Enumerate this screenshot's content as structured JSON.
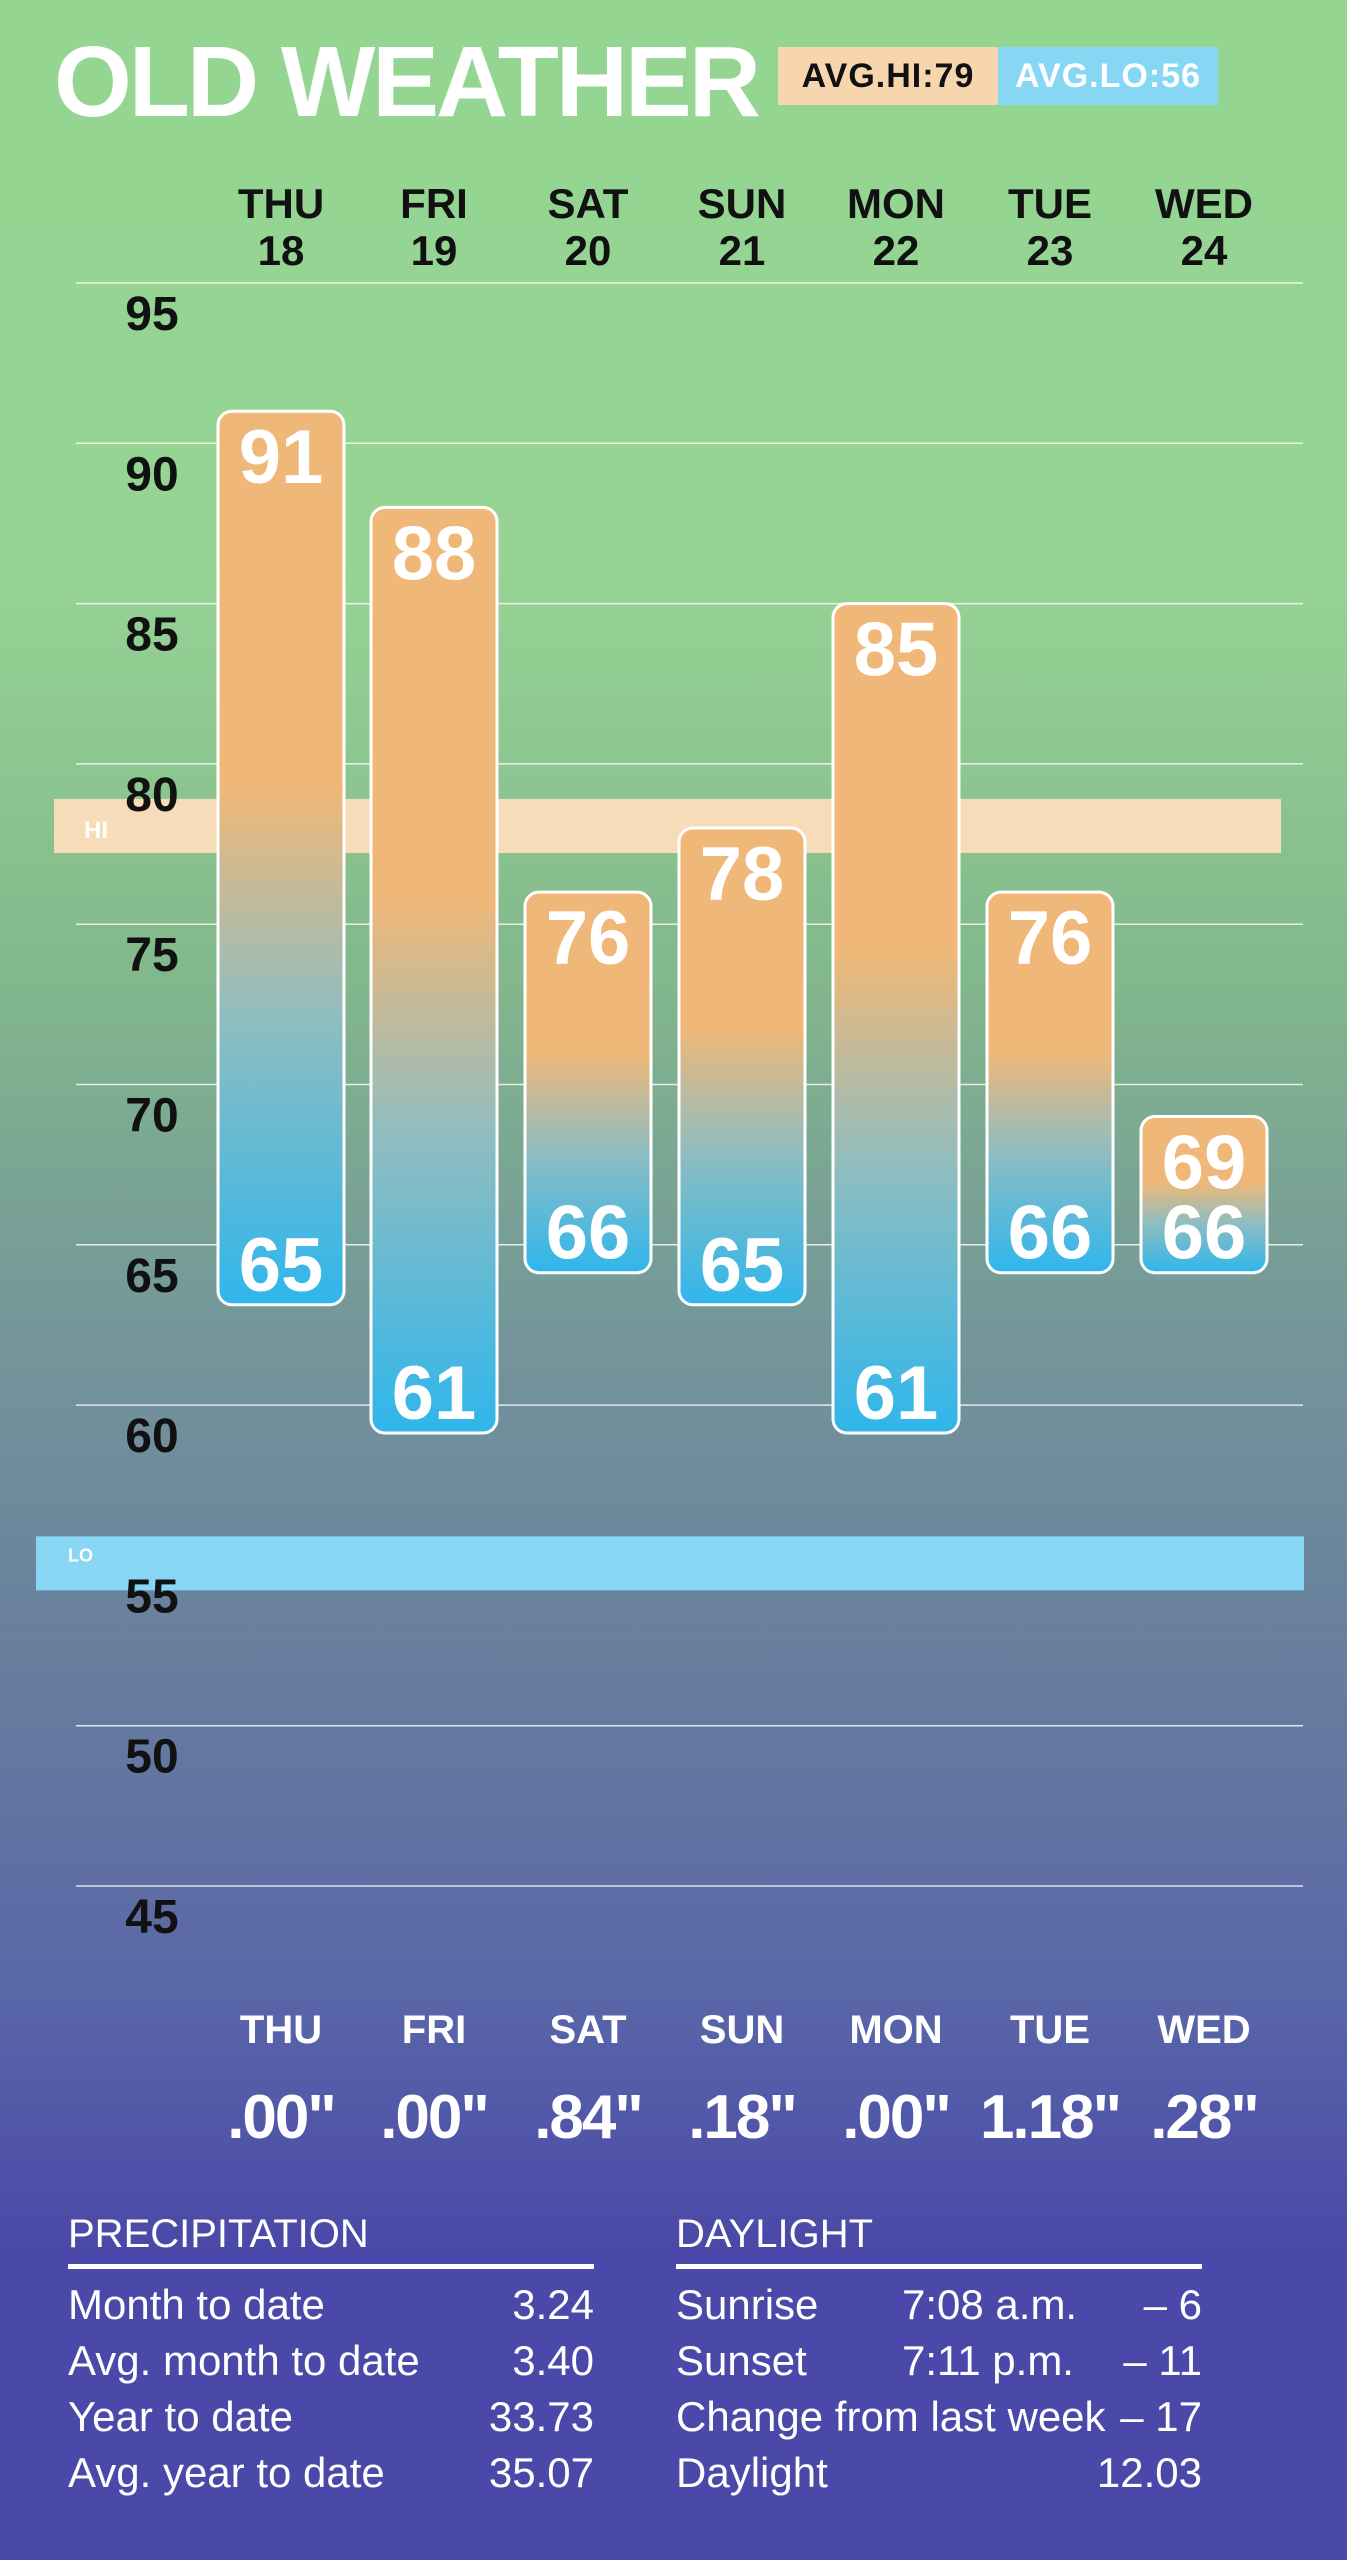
{
  "header": {
    "title": "OLD WEATHER",
    "avg_hi_label": "AVG.HI:79",
    "avg_lo_label": "AVG.LO:56"
  },
  "colors": {
    "hi": "#f0b878",
    "lo": "#2fb6ec",
    "hi_band": "#f7dcba",
    "lo_band": "#86d6f4"
  },
  "chart_data": {
    "type": "bar",
    "subtype": "floating-range",
    "categories": [
      {
        "dow": "THU",
        "date": "18"
      },
      {
        "dow": "FRI",
        "date": "19"
      },
      {
        "dow": "SAT",
        "date": "20"
      },
      {
        "dow": "SUN",
        "date": "21"
      },
      {
        "dow": "MON",
        "date": "22"
      },
      {
        "dow": "TUE",
        "date": "23"
      },
      {
        "dow": "WED",
        "date": "24"
      }
    ],
    "highs": [
      91,
      88,
      76,
      78,
      85,
      76,
      69
    ],
    "lows": [
      65,
      61,
      66,
      65,
      61,
      66,
      66
    ],
    "ylim": [
      45,
      95
    ],
    "yticks": [
      95,
      90,
      85,
      80,
      75,
      70,
      65,
      60,
      55,
      50,
      45
    ],
    "reference_bands": [
      {
        "label": "HI",
        "value": 79
      },
      {
        "label": "LO",
        "value": 56
      }
    ],
    "grid": true
  },
  "precipitation_days": [
    {
      "dow": "THU",
      "amount": ".00\""
    },
    {
      "dow": "FRI",
      "amount": ".00\""
    },
    {
      "dow": "SAT",
      "amount": ".84\""
    },
    {
      "dow": "SUN",
      "amount": ".18\""
    },
    {
      "dow": "MON",
      "amount": ".00\""
    },
    {
      "dow": "TUE",
      "amount": "1.18\""
    },
    {
      "dow": "WED",
      "amount": ".28\""
    }
  ],
  "precipitation": {
    "heading": "PRECIPITATION",
    "rows": [
      {
        "label": "Month to date",
        "value": "3.24"
      },
      {
        "label": "Avg. month to date",
        "value": "3.40"
      },
      {
        "label": "Year to date",
        "value": "33.73"
      },
      {
        "label": "Avg. year to date",
        "value": "35.07"
      }
    ]
  },
  "daylight": {
    "heading": "DAYLIGHT",
    "rows": [
      {
        "label": "Sunrise",
        "time": "7:08 a.m.",
        "value": "– 6"
      },
      {
        "label": "Sunset",
        "time": "7:11 p.m.",
        "value": "– 11"
      },
      {
        "label": "Change from last week",
        "time": "",
        "value": "– 17"
      },
      {
        "label": "Daylight",
        "time": "",
        "value": "12.03"
      }
    ]
  }
}
